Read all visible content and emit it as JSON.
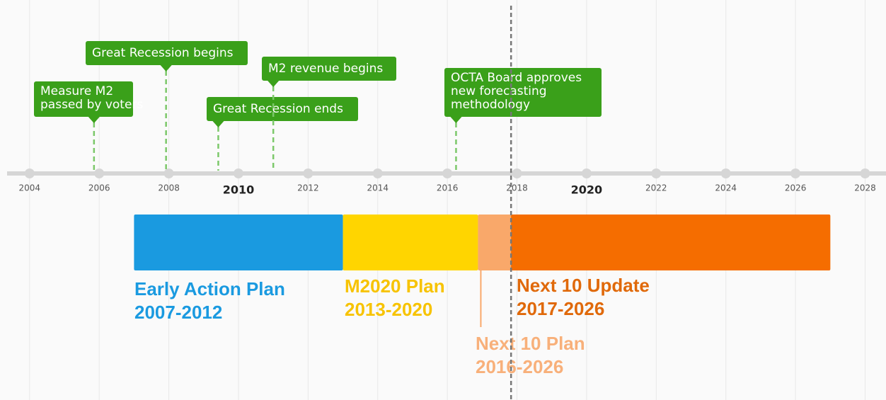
{
  "chart_data": {
    "type": "timeline",
    "xlim": [
      2003.15,
      2028.6
    ],
    "xticks": [
      2004,
      2006,
      2008,
      2010,
      2012,
      2014,
      2016,
      2018,
      2020,
      2022,
      2024,
      2026,
      2028
    ],
    "bold_ticks": [
      2010,
      2020
    ],
    "grid": true,
    "now": 2017.83,
    "event_color": "#3aa01a",
    "events": [
      {
        "label": [
          "Measure M2",
          "passed by voters"
        ],
        "x": 2005.85
      },
      {
        "label": [
          "Great Recession begins"
        ],
        "x": 2007.92
      },
      {
        "label": [
          "Great Recession ends"
        ],
        "x": 2009.42
      },
      {
        "label": [
          "M2 revenue begins"
        ],
        "x": 2011.0
      },
      {
        "label": [
          "OCTA Board approves",
          "new forecasting",
          "methodology"
        ],
        "x": 2016.25
      }
    ],
    "periods": [
      {
        "name": "Early Action Plan",
        "range": "2007-2012",
        "start": 2007.0,
        "end": 2013.0,
        "color": "#1a9ae0",
        "label_color": "#1a9ae0"
      },
      {
        "name": "M2020 Plan",
        "range": "2013-2020",
        "start": 2013.0,
        "end": 2016.88,
        "color": "#ffd500",
        "label_color": "#f7c300"
      },
      {
        "name": "Next 10 Plan",
        "range": "2016-2026",
        "start": 2016.88,
        "end": 2027.0,
        "color": "#f9a86a",
        "label_color": "#f8b07a"
      },
      {
        "name": "Next 10 Update",
        "range": "2017-2026",
        "start": 2017.83,
        "end": 2027.0,
        "color": "#f56d00",
        "label_color": "#e0690a"
      }
    ]
  }
}
